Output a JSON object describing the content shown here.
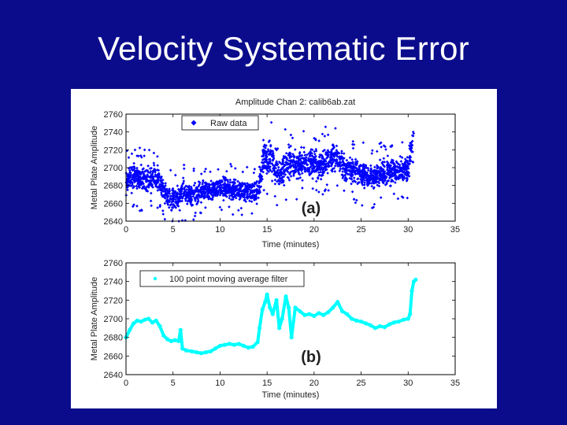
{
  "slide": {
    "title": "Velocity Systematic Error"
  },
  "chart_data": [
    {
      "type": "scatter",
      "title": "Amplitude Chan 2: calib6ab.zat",
      "panel_label": "(a)",
      "xlabel": "Time (minutes)",
      "ylabel": "Metal Plate Amplitude",
      "xlim": [
        0,
        35
      ],
      "ylim": [
        2640,
        2760
      ],
      "xticks": [
        0,
        5,
        10,
        15,
        20,
        25,
        30,
        35
      ],
      "yticks": [
        2640,
        2660,
        2680,
        2700,
        2720,
        2740,
        2760
      ],
      "grid": false,
      "legend_position": "top-left",
      "series": [
        {
          "name": "Raw data",
          "color": "#0000ff",
          "marker": "diamond",
          "x": [
            0,
            0.5,
            1,
            1.5,
            2,
            2.5,
            3,
            3.5,
            4,
            4.5,
            5,
            5.5,
            6,
            6.5,
            7,
            7.5,
            8,
            8.5,
            9,
            9.5,
            10,
            10.5,
            11,
            11.5,
            12,
            12.5,
            13,
            13.5,
            14,
            14.3,
            14.6,
            15,
            15.5,
            16,
            16.5,
            17,
            17.5,
            18,
            18.5,
            19,
            19.5,
            20,
            20.5,
            21,
            21.5,
            22,
            22.5,
            23,
            23.5,
            24,
            24.5,
            25,
            25.5,
            26,
            26.5,
            27,
            27.5,
            28,
            28.5,
            29,
            29.5,
            30,
            30.3,
            30.6
          ],
          "center": [
            2685,
            2690,
            2688,
            2686,
            2687,
            2688,
            2690,
            2685,
            2675,
            2668,
            2665,
            2665,
            2675,
            2670,
            2670,
            2671,
            2673,
            2675,
            2675,
            2675,
            2678,
            2677,
            2676,
            2676,
            2676,
            2674,
            2672,
            2672,
            2672,
            2690,
            2710,
            2712,
            2705,
            2700,
            2690,
            2700,
            2705,
            2702,
            2705,
            2705,
            2703,
            2705,
            2702,
            2705,
            2708,
            2712,
            2710,
            2702,
            2698,
            2698,
            2696,
            2694,
            2692,
            2690,
            2692,
            2692,
            2695,
            2696,
            2698,
            2697,
            2696,
            2698,
            2720,
            2745
          ],
          "spread": [
            18,
            20,
            20,
            20,
            20,
            20,
            20,
            20,
            18,
            18,
            18,
            18,
            20,
            16,
            16,
            16,
            16,
            16,
            16,
            16,
            16,
            16,
            16,
            16,
            16,
            16,
            16,
            16,
            16,
            24,
            26,
            26,
            26,
            28,
            26,
            26,
            24,
            22,
            22,
            22,
            22,
            22,
            22,
            22,
            22,
            22,
            22,
            22,
            20,
            20,
            20,
            20,
            20,
            20,
            20,
            20,
            20,
            20,
            20,
            20,
            20,
            20,
            24,
            20
          ]
        }
      ]
    },
    {
      "type": "line",
      "panel_label": "(b)",
      "xlabel": "Time (minutes)",
      "ylabel": "Metal Plate Amplitude",
      "xlim": [
        0,
        35
      ],
      "ylim": [
        2640,
        2760
      ],
      "xticks": [
        0,
        5,
        10,
        15,
        20,
        25,
        30,
        35
      ],
      "yticks": [
        2640,
        2660,
        2680,
        2700,
        2720,
        2740,
        2760
      ],
      "grid": false,
      "legend_position": "top-left",
      "series": [
        {
          "name": "100 point moving average filter",
          "color": "#00ffff",
          "marker": "point",
          "x": [
            0,
            0.4,
            0.8,
            1.2,
            1.6,
            2.0,
            2.4,
            2.8,
            3.2,
            3.6,
            4.0,
            4.4,
            4.8,
            5.2,
            5.6,
            5.8,
            6.0,
            6.4,
            7,
            7.5,
            8,
            8.5,
            9,
            9.5,
            10,
            10.5,
            11,
            11.5,
            12,
            12.5,
            13,
            13.5,
            14,
            14.2,
            14.5,
            14.8,
            15,
            15.3,
            15.6,
            16,
            16.3,
            16.6,
            17,
            17.3,
            17.6,
            18,
            18.5,
            19,
            19.5,
            20,
            20.5,
            21,
            21.5,
            22,
            22.5,
            23,
            23.5,
            24,
            24.5,
            25,
            25.5,
            26,
            26.5,
            27,
            27.5,
            28,
            28.5,
            29,
            29.5,
            30,
            30.2,
            30.4,
            30.6,
            30.8
          ],
          "y": [
            2680,
            2688,
            2695,
            2698,
            2697,
            2699,
            2700,
            2696,
            2698,
            2692,
            2682,
            2678,
            2676,
            2677,
            2676,
            2688,
            2668,
            2666,
            2665,
            2664,
            2663,
            2664,
            2665,
            2668,
            2671,
            2672,
            2673,
            2672,
            2673,
            2671,
            2669,
            2670,
            2675,
            2690,
            2710,
            2718,
            2726,
            2712,
            2705,
            2720,
            2690,
            2700,
            2724,
            2712,
            2680,
            2712,
            2708,
            2704,
            2705,
            2703,
            2706,
            2704,
            2707,
            2712,
            2718,
            2708,
            2705,
            2700,
            2698,
            2697,
            2695,
            2693,
            2690,
            2692,
            2691,
            2694,
            2696,
            2697,
            2699,
            2700,
            2705,
            2730,
            2740,
            2742
          ]
        }
      ]
    }
  ]
}
